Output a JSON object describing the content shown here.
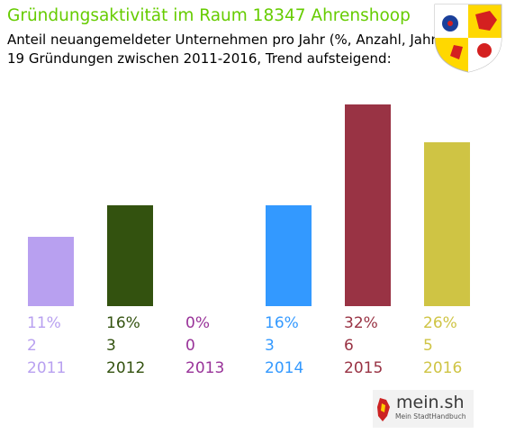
{
  "header": {
    "title": "Gründungsaktivität im Raum 18347 Ahrenshoop",
    "subtitle_line1": "Anteil neuangemeldeter Unternehmen pro Jahr (%, Anzahl, Jahr)",
    "subtitle_line2": "19 Gründungen zwischen 2011-2016, Trend aufsteigend:"
  },
  "colors": {
    "title": "#66cc00",
    "bars": [
      "#b8a0f0",
      "#33520f",
      "#993399",
      "#3399ff",
      "#993344",
      "#cfc444"
    ],
    "crest_yellow": "#ffd800",
    "crest_blue": "#1a3f9a",
    "crest_red": "#d42020",
    "crest_white": "#ffffff"
  },
  "crest": {
    "icon": "coat-of-arms-icon"
  },
  "chart_data": {
    "type": "bar",
    "categories": [
      "2011",
      "2012",
      "2013",
      "2014",
      "2015",
      "2016"
    ],
    "percent_labels": [
      "11%",
      "16%",
      "0%",
      "16%",
      "32%",
      "26%"
    ],
    "count_labels": [
      "2",
      "3",
      "0",
      "3",
      "6",
      "5"
    ],
    "values": [
      11,
      16,
      0,
      16,
      32,
      26
    ],
    "counts": [
      2,
      3,
      0,
      3,
      6,
      5
    ],
    "ylim": [
      0,
      32
    ],
    "grid": false,
    "legend": "none"
  },
  "brand": {
    "name": "mein.sh",
    "tagline": "Mein StadtHandbuch",
    "icon": "brand-logo-icon"
  }
}
